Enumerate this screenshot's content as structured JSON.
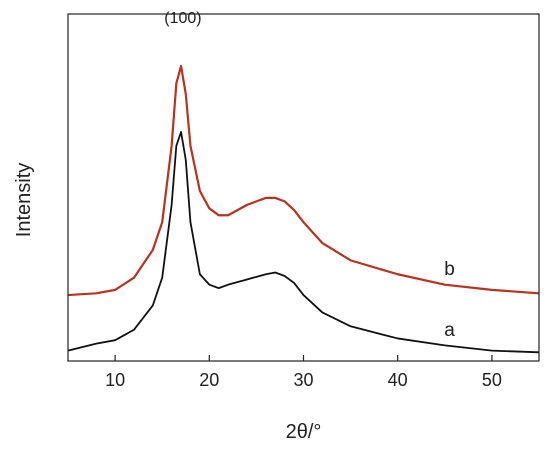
{
  "chart_data": {
    "type": "line",
    "xlabel": "2θ/°",
    "ylabel": "Intensity",
    "xlim": [
      5,
      55
    ],
    "ylim": [
      0,
      100
    ],
    "x_ticks": [
      10,
      20,
      30,
      40,
      50
    ],
    "y_ticks_shown": false,
    "grid": false,
    "annotations": [
      {
        "text": "(100)",
        "x": 17.2
      }
    ],
    "series": [
      {
        "name": "a",
        "color": "#111111",
        "x": [
          5,
          8,
          10,
          12,
          14,
          15,
          16,
          16.5,
          17,
          17.5,
          18,
          19,
          20,
          21,
          22,
          24,
          26,
          27,
          28,
          29,
          30,
          32,
          35,
          40,
          45,
          50,
          55
        ],
        "y": [
          3,
          5,
          6,
          9,
          16,
          24,
          45,
          62,
          66,
          58,
          40,
          25,
          22,
          21,
          22,
          23.5,
          25,
          25.5,
          24.5,
          22.5,
          19,
          14,
          10,
          6.5,
          4.5,
          3,
          2.5
        ]
      },
      {
        "name": "b",
        "color": "#b5341f",
        "x": [
          5,
          8,
          10,
          12,
          14,
          15,
          16,
          16.5,
          17,
          17.5,
          18,
          19,
          20,
          21,
          22,
          24,
          26,
          27,
          28,
          29,
          30,
          32,
          35,
          40,
          45,
          50,
          55
        ],
        "y": [
          19,
          19.5,
          20.5,
          24,
          32,
          40,
          62,
          80,
          85,
          77,
          62,
          49,
          44,
          42,
          42,
          45,
          47,
          47,
          46,
          43.5,
          40,
          34,
          29,
          25,
          22,
          20.5,
          19.5
        ]
      }
    ]
  }
}
